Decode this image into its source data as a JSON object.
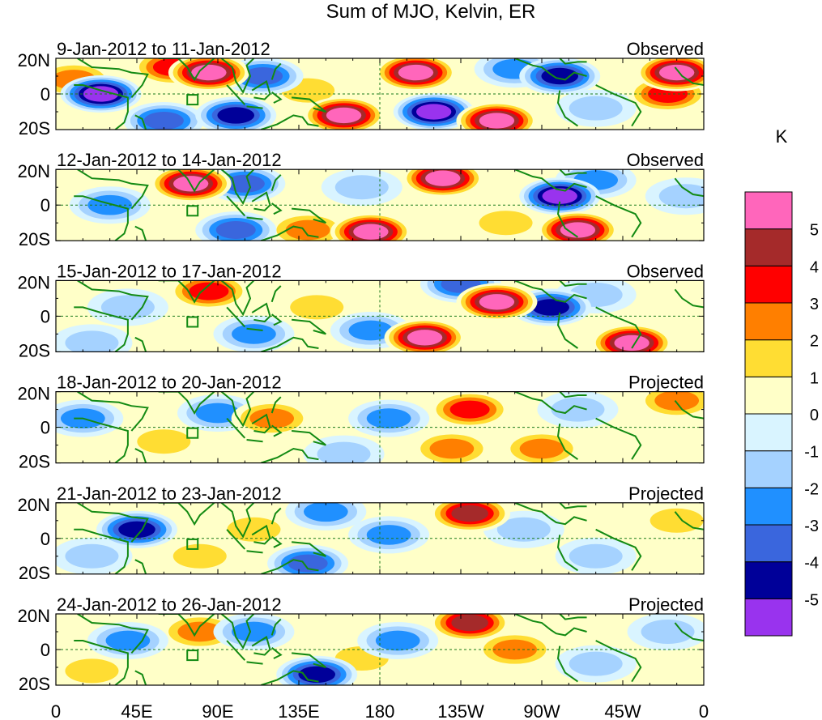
{
  "chart_data": {
    "type": "heatmap",
    "title": "Sum of MJO, Kelvin, ER",
    "units": "K",
    "x_ticks": [
      "0",
      "45E",
      "90E",
      "135E",
      "180",
      "135W",
      "90W",
      "45W",
      "0"
    ],
    "y_ticks": [
      "20N",
      "0",
      "20S"
    ],
    "xlim": [
      0,
      360
    ],
    "ylim": [
      -20,
      20
    ],
    "colorbar": {
      "levels": [
        "-5",
        "-4",
        "-3",
        "-2",
        "-1",
        "0",
        "1",
        "2",
        "3",
        "4",
        "5"
      ],
      "colors": [
        "#9933ee",
        "#000099",
        "#3a66dd",
        "#2090ff",
        "#a5d2ff",
        "#d9f4ff",
        "#ffffc8",
        "#ffdd33",
        "#ff7f00",
        "#ff0000",
        "#a52a2a",
        "#ff66bb"
      ]
    },
    "panels": [
      {
        "date_range": "9-Jan-2012 to 11-Jan-2012",
        "status": "Observed",
        "features": [
          {
            "lon": 25,
            "lat": 0,
            "v": -5.5
          },
          {
            "lon": 10,
            "lat": 8,
            "v": 2.5
          },
          {
            "lon": 85,
            "lat": 12,
            "v": 5.5
          },
          {
            "lon": 65,
            "lat": 15,
            "v": 3.5
          },
          {
            "lon": 115,
            "lat": 10,
            "v": -3.5
          },
          {
            "lon": 100,
            "lat": -12,
            "v": -4.5
          },
          {
            "lon": 160,
            "lat": -12,
            "v": 5.5
          },
          {
            "lon": 140,
            "lat": 2,
            "v": 1.5
          },
          {
            "lon": 200,
            "lat": 12,
            "v": 5.5
          },
          {
            "lon": 210,
            "lat": -10,
            "v": -5.5
          },
          {
            "lon": 245,
            "lat": -15,
            "v": 5.5
          },
          {
            "lon": 280,
            "lat": 10,
            "v": -4.5
          },
          {
            "lon": 255,
            "lat": 14,
            "v": -2.5
          },
          {
            "lon": 340,
            "lat": 0,
            "v": 3.5
          },
          {
            "lon": 345,
            "lat": 12,
            "v": 5.2
          },
          {
            "lon": 60,
            "lat": -15,
            "v": -3.5
          },
          {
            "lon": 300,
            "lat": -8,
            "v": -2.0
          }
        ]
      },
      {
        "date_range": "12-Jan-2012 to 14-Jan-2012",
        "status": "Observed",
        "features": [
          {
            "lon": 75,
            "lat": 12,
            "v": 5.5
          },
          {
            "lon": 105,
            "lat": 12,
            "v": -4.0
          },
          {
            "lon": 175,
            "lat": -15,
            "v": 5.5
          },
          {
            "lon": 140,
            "lat": -14,
            "v": 3.0
          },
          {
            "lon": 30,
            "lat": 0,
            "v": -2.5
          },
          {
            "lon": 215,
            "lat": 15,
            "v": 5.3
          },
          {
            "lon": 170,
            "lat": 10,
            "v": -2.0
          },
          {
            "lon": 280,
            "lat": 5,
            "v": -5.5
          },
          {
            "lon": 290,
            "lat": -14,
            "v": 5.5
          },
          {
            "lon": 300,
            "lat": 14,
            "v": -3.0
          },
          {
            "lon": 100,
            "lat": -14,
            "v": -4.0
          },
          {
            "lon": 250,
            "lat": -10,
            "v": 2.0
          },
          {
            "lon": 350,
            "lat": 5,
            "v": -1.5
          }
        ]
      },
      {
        "date_range": "15-Jan-2012 to 17-Jan-2012",
        "status": "Observed",
        "features": [
          {
            "lon": 85,
            "lat": 14,
            "v": 3.5
          },
          {
            "lon": 40,
            "lat": 5,
            "v": -2.0
          },
          {
            "lon": 245,
            "lat": 8,
            "v": 5.3
          },
          {
            "lon": 275,
            "lat": 5,
            "v": -4.5
          },
          {
            "lon": 205,
            "lat": -12,
            "v": 5.3
          },
          {
            "lon": 175,
            "lat": -8,
            "v": -3.0
          },
          {
            "lon": 145,
            "lat": 5,
            "v": 2.0
          },
          {
            "lon": 320,
            "lat": -15,
            "v": 5.3
          },
          {
            "lon": 20,
            "lat": -15,
            "v": -1.5
          },
          {
            "lon": 300,
            "lat": 12,
            "v": -2.0
          },
          {
            "lon": 110,
            "lat": -10,
            "v": -2.5
          },
          {
            "lon": 225,
            "lat": 18,
            "v": -4.0
          }
        ]
      },
      {
        "date_range": "18-Jan-2012 to 20-Jan-2012",
        "status": "Projected",
        "features": [
          {
            "lon": 230,
            "lat": 10,
            "v": 3.2
          },
          {
            "lon": 15,
            "lat": 5,
            "v": -2.5
          },
          {
            "lon": 90,
            "lat": 8,
            "v": -2.5
          },
          {
            "lon": 120,
            "lat": 5,
            "v": 2.5
          },
          {
            "lon": 220,
            "lat": -12,
            "v": 2.5
          },
          {
            "lon": 185,
            "lat": 5,
            "v": -2.5
          },
          {
            "lon": 270,
            "lat": -12,
            "v": 2.2
          },
          {
            "lon": 345,
            "lat": 15,
            "v": 2.8
          },
          {
            "lon": 60,
            "lat": -8,
            "v": 1.8
          },
          {
            "lon": 290,
            "lat": 10,
            "v": -2.0
          },
          {
            "lon": 160,
            "lat": -15,
            "v": -2.0
          }
        ]
      },
      {
        "date_range": "21-Jan-2012 to 23-Jan-2012",
        "status": "Projected",
        "features": [
          {
            "lon": 45,
            "lat": 5,
            "v": -4.5
          },
          {
            "lon": 230,
            "lat": 14,
            "v": 4.2
          },
          {
            "lon": 140,
            "lat": -14,
            "v": -3.5
          },
          {
            "lon": 110,
            "lat": 5,
            "v": 2.0
          },
          {
            "lon": 185,
            "lat": 2,
            "v": -3.0
          },
          {
            "lon": 260,
            "lat": 5,
            "v": -2.0
          },
          {
            "lon": 80,
            "lat": -10,
            "v": 1.8
          },
          {
            "lon": 345,
            "lat": 10,
            "v": 1.2
          },
          {
            "lon": 300,
            "lat": -10,
            "v": -2.0
          },
          {
            "lon": 20,
            "lat": -10,
            "v": -1.5
          },
          {
            "lon": 150,
            "lat": 15,
            "v": -2.5
          }
        ]
      },
      {
        "date_range": "24-Jan-2012 to 26-Jan-2012",
        "status": "Projected",
        "features": [
          {
            "lon": 230,
            "lat": 15,
            "v": 4.6
          },
          {
            "lon": 145,
            "lat": -14,
            "v": -4.5
          },
          {
            "lon": 40,
            "lat": 5,
            "v": -2.5
          },
          {
            "lon": 110,
            "lat": 10,
            "v": -2.5
          },
          {
            "lon": 190,
            "lat": 5,
            "v": -3.0
          },
          {
            "lon": 255,
            "lat": 0,
            "v": 2.2
          },
          {
            "lon": 80,
            "lat": 10,
            "v": 2.2
          },
          {
            "lon": 300,
            "lat": -8,
            "v": -1.8
          },
          {
            "lon": 340,
            "lat": 10,
            "v": -1.5
          },
          {
            "lon": 170,
            "lat": -5,
            "v": 1.5
          },
          {
            "lon": 20,
            "lat": -12,
            "v": 1.5
          }
        ]
      }
    ]
  }
}
